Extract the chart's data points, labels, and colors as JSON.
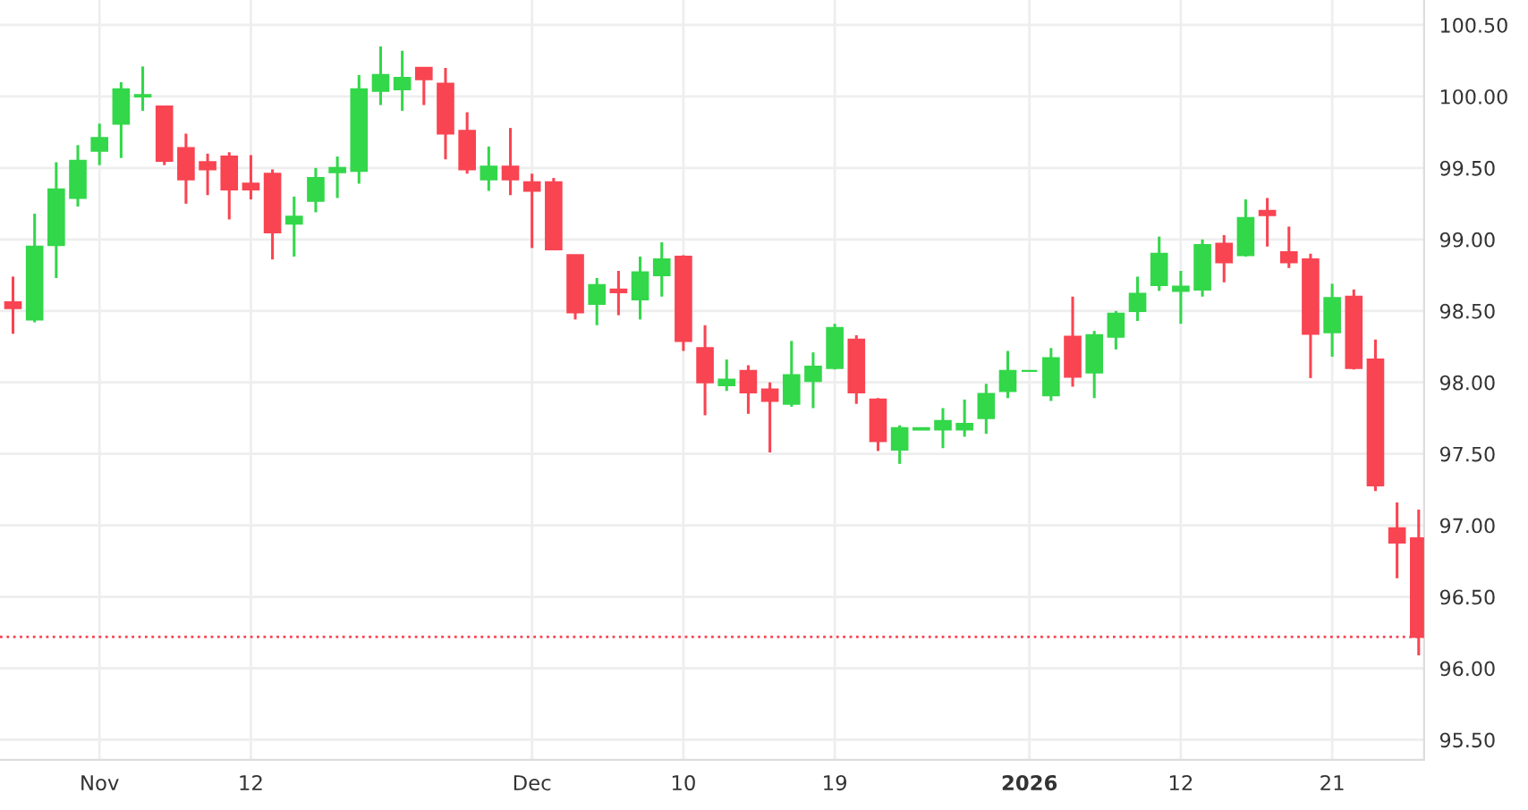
{
  "chart_data": {
    "type": "candlestick",
    "categories": [
      null,
      null,
      null,
      null,
      "Nov",
      null,
      null,
      null,
      null,
      null,
      null,
      "12",
      null,
      null,
      null,
      null,
      null,
      null,
      null,
      null,
      null,
      null,
      null,
      null,
      "Dec",
      null,
      null,
      null,
      null,
      null,
      null,
      "10",
      null,
      null,
      null,
      null,
      null,
      null,
      "19",
      null,
      null,
      null,
      null,
      null,
      null,
      null,
      null,
      "2026",
      null,
      null,
      null,
      null,
      null,
      null,
      "12",
      null,
      null,
      null,
      null,
      null,
      null,
      "21",
      null,
      null,
      null,
      null
    ],
    "ohlc": [
      [
        98.56,
        98.74,
        98.34,
        98.52
      ],
      [
        98.44,
        99.18,
        98.42,
        98.95
      ],
      [
        98.96,
        99.54,
        98.73,
        99.35
      ],
      [
        99.29,
        99.66,
        99.23,
        99.55
      ],
      [
        99.62,
        99.81,
        99.52,
        99.71
      ],
      [
        99.81,
        100.1,
        99.57,
        100.05
      ],
      [
        100.0,
        100.21,
        99.9,
        100.01
      ],
      [
        99.93,
        99.93,
        99.52,
        99.55
      ],
      [
        99.64,
        99.74,
        99.25,
        99.42
      ],
      [
        99.54,
        99.6,
        99.31,
        99.49
      ],
      [
        99.58,
        99.61,
        99.14,
        99.35
      ],
      [
        99.39,
        99.59,
        99.28,
        99.35
      ],
      [
        99.46,
        99.49,
        98.86,
        99.05
      ],
      [
        99.11,
        99.3,
        98.88,
        99.16
      ],
      [
        99.27,
        99.5,
        99.19,
        99.43
      ],
      [
        99.47,
        99.58,
        99.29,
        99.5
      ],
      [
        99.48,
        100.15,
        99.39,
        100.05
      ],
      [
        100.04,
        100.35,
        99.94,
        100.15
      ],
      [
        100.05,
        100.32,
        99.9,
        100.13
      ],
      [
        100.2,
        100.2,
        99.94,
        100.12
      ],
      [
        100.09,
        100.2,
        99.56,
        99.74
      ],
      [
        99.76,
        99.89,
        99.46,
        99.49
      ],
      [
        99.42,
        99.65,
        99.34,
        99.51
      ],
      [
        99.51,
        99.78,
        99.31,
        99.42
      ],
      [
        99.4,
        99.46,
        98.94,
        99.34
      ],
      [
        99.4,
        99.43,
        98.93,
        98.93
      ],
      [
        98.89,
        98.89,
        98.44,
        98.49
      ],
      [
        98.55,
        98.73,
        98.4,
        98.68
      ],
      [
        98.65,
        98.78,
        98.47,
        98.63
      ],
      [
        98.58,
        98.88,
        98.44,
        98.77
      ],
      [
        98.75,
        98.98,
        98.6,
        98.86
      ],
      [
        98.88,
        98.89,
        98.22,
        98.29
      ],
      [
        98.24,
        98.4,
        97.77,
        98.0
      ],
      [
        97.98,
        98.16,
        97.94,
        98.02
      ],
      [
        98.08,
        98.12,
        97.78,
        97.93
      ],
      [
        97.95,
        98.0,
        97.51,
        97.87
      ],
      [
        97.85,
        98.29,
        97.83,
        98.05
      ],
      [
        98.01,
        98.21,
        97.82,
        98.11
      ],
      [
        98.1,
        98.41,
        98.09,
        98.38
      ],
      [
        98.3,
        98.33,
        97.85,
        97.93
      ],
      [
        97.88,
        97.89,
        97.52,
        97.59
      ],
      [
        97.53,
        97.7,
        97.43,
        97.68
      ],
      [
        97.67,
        97.68,
        97.67,
        97.68
      ],
      [
        97.67,
        97.82,
        97.54,
        97.73
      ],
      [
        97.67,
        97.88,
        97.62,
        97.71
      ],
      [
        97.75,
        97.99,
        97.64,
        97.92
      ],
      [
        97.94,
        98.22,
        97.89,
        98.08
      ],
      [
        98.08,
        98.08,
        98.08,
        98.08
      ],
      [
        97.91,
        98.24,
        97.87,
        98.17
      ],
      [
        98.32,
        98.6,
        97.97,
        98.04
      ],
      [
        98.07,
        98.36,
        97.89,
        98.33
      ],
      [
        98.32,
        98.5,
        98.23,
        98.48
      ],
      [
        98.5,
        98.74,
        98.43,
        98.62
      ],
      [
        98.68,
        99.02,
        98.64,
        98.9
      ],
      [
        98.64,
        98.78,
        98.41,
        98.67
      ],
      [
        98.65,
        99.0,
        98.6,
        98.96
      ],
      [
        98.97,
        99.03,
        98.7,
        98.84
      ],
      [
        98.89,
        99.28,
        98.88,
        99.15
      ],
      [
        99.2,
        99.29,
        98.95,
        99.17
      ],
      [
        98.91,
        99.09,
        98.8,
        98.84
      ],
      [
        98.86,
        98.9,
        98.03,
        98.34
      ],
      [
        98.35,
        98.69,
        98.18,
        98.59
      ],
      [
        98.6,
        98.65,
        98.09,
        98.1
      ],
      [
        98.16,
        98.3,
        97.24,
        97.28
      ],
      [
        96.98,
        97.16,
        96.63,
        96.88
      ],
      [
        96.91,
        97.11,
        96.09,
        96.22
      ]
    ],
    "colors": [
      "#f94452",
      "#33d74a",
      "#33d74a",
      "#33d74a",
      "#33d74a",
      "#33d74a",
      "#33d74a",
      "#f94452",
      "#f94452",
      "#f94452",
      "#f94452",
      "#f94452",
      "#f94452",
      "#33d74a",
      "#33d74a",
      "#33d74a",
      "#33d74a",
      "#33d74a",
      "#33d74a",
      "#f94452",
      "#f94452",
      "#f94452",
      "#33d74a",
      "#f94452",
      "#f94452",
      "#f94452",
      "#f94452",
      "#33d74a",
      "#f94452",
      "#33d74a",
      "#33d74a",
      "#f94452",
      "#f94452",
      "#33d74a",
      "#f94452",
      "#f94452",
      "#33d74a",
      "#33d74a",
      "#33d74a",
      "#f94452",
      "#f94452",
      "#33d74a",
      "#33d74a",
      "#33d74a",
      "#33d74a",
      "#33d74a",
      "#33d74a",
      "#33d74a",
      "#33d74a",
      "#f94452",
      "#33d74a",
      "#33d74a",
      "#33d74a",
      "#33d74a",
      "#33d74a",
      "#33d74a",
      "#f94452",
      "#33d74a",
      "#f94452",
      "#f94452",
      "#f94452",
      "#33d74a",
      "#f94452",
      "#f94452",
      "#f94452",
      "#f94452"
    ],
    "ylim": [
      95.36,
      100.675
    ],
    "yticks": [
      {
        "value": 95.5,
        "label": "95.50"
      },
      {
        "value": 96.0,
        "label": "96.00"
      },
      {
        "value": 96.5,
        "label": "96.50"
      },
      {
        "value": 97.0,
        "label": "97.00"
      },
      {
        "value": 97.5,
        "label": "97.50"
      },
      {
        "value": 98.0,
        "label": "98.00"
      },
      {
        "value": 98.5,
        "label": "98.50"
      },
      {
        "value": 99.0,
        "label": "99.00"
      },
      {
        "value": 99.5,
        "label": "99.50"
      },
      {
        "value": 100.0,
        "label": "100.00"
      },
      {
        "value": 100.5,
        "label": "100.50"
      }
    ],
    "ref_lines": [
      {
        "axis": "y",
        "value": 96.22,
        "color": "#f94452",
        "line_style": "dotted"
      }
    ],
    "grid": true
  }
}
